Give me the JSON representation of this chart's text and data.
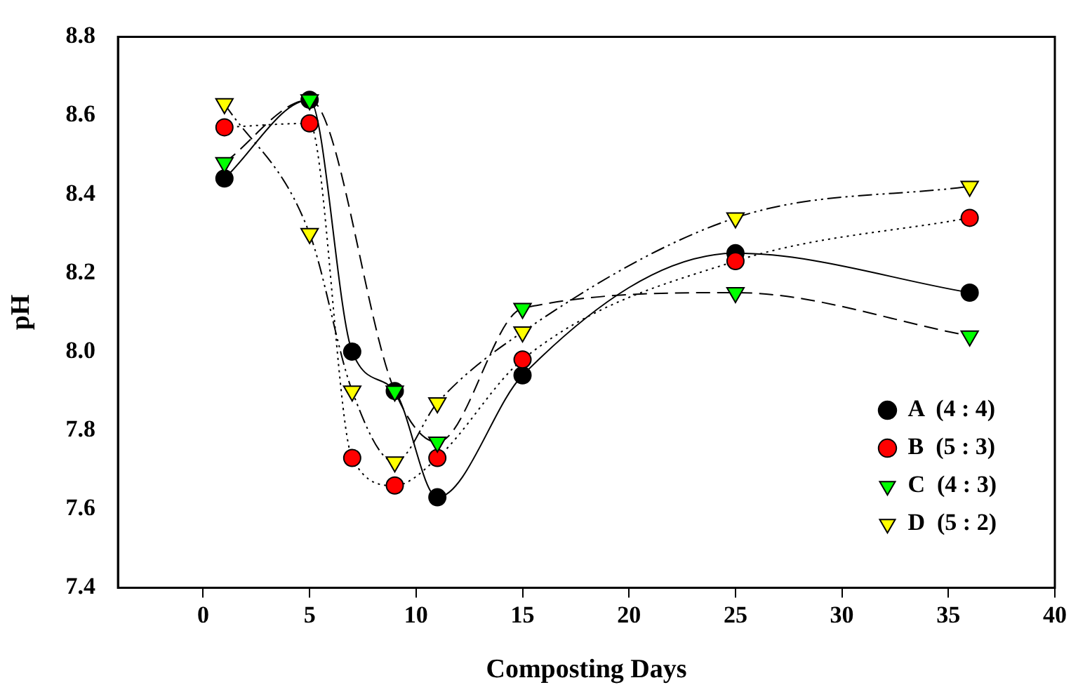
{
  "chart_data": {
    "type": "line",
    "xlabel": "Composting Days",
    "ylabel": "pH",
    "x": [
      1,
      5,
      7,
      9,
      11,
      15,
      25,
      36
    ],
    "series": [
      {
        "name": "A  (4 : 4)",
        "color": "#000000",
        "marker": "circle",
        "line_style": "solid",
        "values": [
          8.44,
          8.64,
          8.0,
          7.9,
          7.63,
          7.94,
          8.25,
          8.15
        ]
      },
      {
        "name": "B  (5 : 3)",
        "color": "#ff0000",
        "marker": "circle",
        "line_style": "dotted",
        "values": [
          8.57,
          8.58,
          7.73,
          7.66,
          7.73,
          7.98,
          8.23,
          8.34
        ]
      },
      {
        "name": "C  (4 : 3)",
        "color": "#00ff00",
        "marker": "triangle",
        "line_style": "dashed",
        "values": [
          8.48,
          8.64,
          null,
          7.9,
          7.77,
          8.11,
          8.15,
          8.04
        ]
      },
      {
        "name": "D  (5 : 2)",
        "color": "#ffff00",
        "marker": "triangle",
        "line_style": "dashdot",
        "values": [
          8.63,
          8.3,
          7.9,
          7.72,
          7.87,
          8.05,
          8.34,
          8.42
        ]
      }
    ],
    "xlim": [
      -4,
      40
    ],
    "xticks": [
      0,
      5,
      10,
      15,
      20,
      25,
      30,
      35,
      40
    ],
    "ylim": [
      7.4,
      8.8
    ],
    "yticks": [
      {
        "value": 7.4,
        "label": "7.4"
      },
      {
        "value": 7.6,
        "label": "7.6"
      },
      {
        "value": 7.8,
        "label": "7.8"
      },
      {
        "value": 8.0,
        "label": "8.0"
      },
      {
        "value": 8.2,
        "label": "8.2"
      },
      {
        "value": 8.4,
        "label": "8.4"
      },
      {
        "value": 8.6,
        "label": "8.6"
      },
      {
        "value": 8.8,
        "label": "8.8"
      }
    ],
    "grid": false,
    "legend": "bottom right"
  }
}
